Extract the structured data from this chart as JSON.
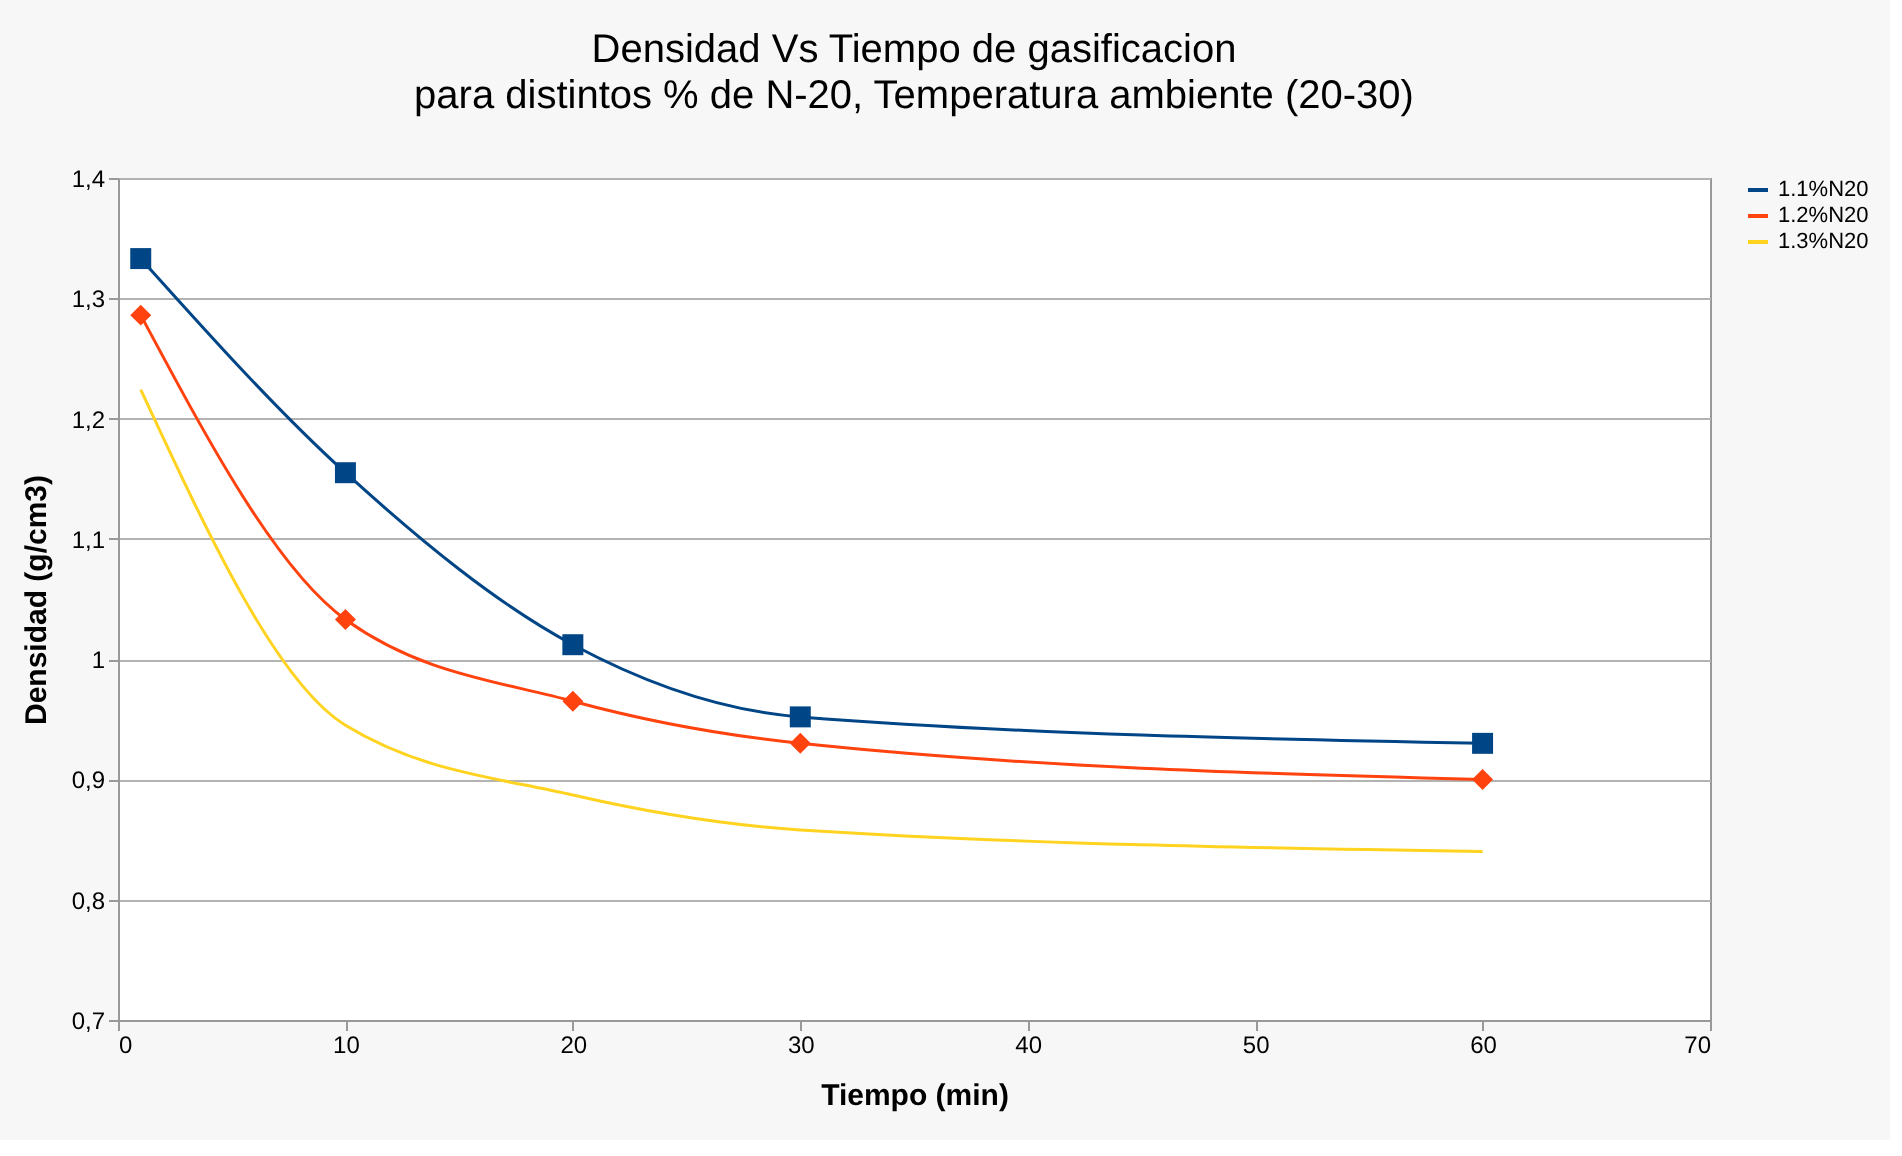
{
  "chart_data": {
    "type": "line",
    "title": "Densidad Vs Tiempo de gasificacion",
    "subtitle": "para distintos % de N-20, Temperatura ambiente (20-30)",
    "xlabel": "Tiempo (min)",
    "ylabel": "Densidad (g/cm3)",
    "series": [
      {
        "name": "1.1%N20",
        "color": "#004586",
        "marker": "square",
        "x": [
          1,
          10,
          20,
          30,
          60
        ],
        "values": [
          1.333,
          1.155,
          1.012,
          0.952,
          0.93
        ]
      },
      {
        "name": "1.2%N20",
        "color": "#ff420e",
        "marker": "diamond",
        "x": [
          1,
          10,
          20,
          30,
          60
        ],
        "values": [
          1.286,
          1.033,
          0.965,
          0.93,
          0.9
        ]
      },
      {
        "name": "1.3%N20",
        "color": "#ffd320",
        "marker": "none",
        "x": [
          1,
          10,
          20,
          30,
          60
        ],
        "values": [
          1.224,
          0.945,
          0.887,
          0.858,
          0.84
        ]
      }
    ],
    "xlim": [
      0,
      70
    ],
    "xticks": [
      0,
      10,
      20,
      30,
      40,
      50,
      60,
      70
    ],
    "ylim": [
      0.7,
      1.4
    ],
    "yticks": [
      {
        "value": 0.7,
        "label": "0,7"
      },
      {
        "value": 0.8,
        "label": "0,8"
      },
      {
        "value": 0.9,
        "label": "0,9"
      },
      {
        "value": 1,
        "label": "1"
      },
      {
        "value": 1.1,
        "label": "1,1"
      },
      {
        "value": 1.2,
        "label": "1,2"
      },
      {
        "value": 1.3,
        "label": "1,3"
      },
      {
        "value": 1.4,
        "label": "1,4"
      }
    ],
    "grid": "y",
    "legend": "right",
    "line_style": "solid"
  }
}
